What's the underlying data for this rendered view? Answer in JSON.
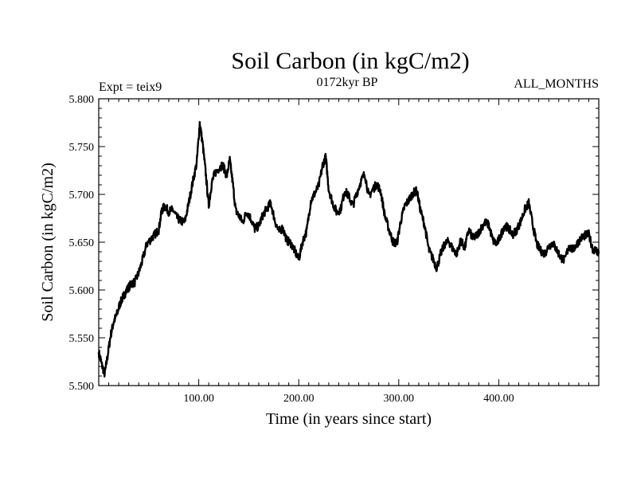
{
  "chart_data": {
    "type": "line",
    "title": "Soil Carbon (in kgC/m2)",
    "subtitle_left": "Expt = teix9",
    "subtitle_center": "0172kyr BP",
    "subtitle_right": "ALL_MONTHS",
    "xlabel": "Time (in years since start)",
    "ylabel": "Soil Carbon (in kgC/m2)",
    "xlim": [
      0,
      500
    ],
    "ylim": [
      5.5,
      5.8
    ],
    "x_ticks": [
      100,
      200,
      300,
      400
    ],
    "x_tick_labels": [
      "100.00",
      "200.00",
      "300.00",
      "400.00"
    ],
    "y_ticks": [
      5.5,
      5.55,
      5.6,
      5.65,
      5.7,
      5.75,
      5.8
    ],
    "y_tick_labels": [
      "5.500",
      "5.550",
      "5.600",
      "5.650",
      "5.700",
      "5.750",
      "5.800"
    ],
    "grid": false,
    "color": "#000000",
    "series": [
      {
        "x": [
          0,
          3,
          6,
          9,
          12,
          15,
          18,
          21,
          24,
          27,
          30,
          33,
          36,
          40,
          44,
          48,
          52,
          56,
          60,
          63,
          66,
          70,
          74,
          78,
          82,
          86,
          90,
          94,
          98,
          101,
          104,
          107,
          110,
          113,
          116,
          120,
          124,
          128,
          131,
          134,
          137,
          140,
          144,
          148,
          152,
          156,
          160,
          164,
          168,
          172,
          176,
          180,
          184,
          188,
          192,
          196,
          200,
          204,
          208,
          212,
          216,
          220,
          224,
          227,
          230,
          234,
          238,
          242,
          246,
          250,
          254,
          258,
          262,
          266,
          270,
          274,
          278,
          282,
          286,
          290,
          294,
          298,
          302,
          306,
          310,
          314,
          318,
          322,
          326,
          330,
          334,
          338,
          342,
          346,
          350,
          354,
          358,
          362,
          366,
          370,
          374,
          378,
          382,
          386,
          390,
          394,
          398,
          402,
          406,
          410,
          414,
          418,
          422,
          426,
          430,
          434,
          438,
          442,
          446,
          450,
          454,
          458,
          462,
          466,
          470,
          474,
          478,
          482,
          486,
          490,
          494,
          498,
          500
        ],
        "y": [
          5.535,
          5.522,
          5.512,
          5.532,
          5.553,
          5.567,
          5.574,
          5.585,
          5.592,
          5.598,
          5.603,
          5.607,
          5.608,
          5.618,
          5.632,
          5.648,
          5.653,
          5.658,
          5.663,
          5.683,
          5.688,
          5.682,
          5.684,
          5.676,
          5.672,
          5.671,
          5.691,
          5.713,
          5.733,
          5.775,
          5.752,
          5.722,
          5.688,
          5.712,
          5.722,
          5.727,
          5.731,
          5.719,
          5.736,
          5.712,
          5.683,
          5.678,
          5.671,
          5.682,
          5.675,
          5.664,
          5.667,
          5.678,
          5.685,
          5.691,
          5.673,
          5.661,
          5.665,
          5.652,
          5.649,
          5.641,
          5.632,
          5.651,
          5.662,
          5.693,
          5.701,
          5.709,
          5.731,
          5.739,
          5.705,
          5.691,
          5.681,
          5.685,
          5.704,
          5.698,
          5.688,
          5.701,
          5.713,
          5.722,
          5.698,
          5.705,
          5.711,
          5.703,
          5.678,
          5.664,
          5.651,
          5.648,
          5.672,
          5.688,
          5.694,
          5.701,
          5.704,
          5.682,
          5.667,
          5.642,
          5.633,
          5.623,
          5.638,
          5.648,
          5.651,
          5.643,
          5.638,
          5.652,
          5.644,
          5.663,
          5.654,
          5.657,
          5.664,
          5.671,
          5.668,
          5.652,
          5.648,
          5.657,
          5.668,
          5.664,
          5.658,
          5.663,
          5.672,
          5.684,
          5.691,
          5.668,
          5.648,
          5.641,
          5.638,
          5.646,
          5.649,
          5.642,
          5.634,
          5.631,
          5.646,
          5.642,
          5.648,
          5.654,
          5.657,
          5.658,
          5.643,
          5.641,
          5.638
        ]
      }
    ]
  }
}
